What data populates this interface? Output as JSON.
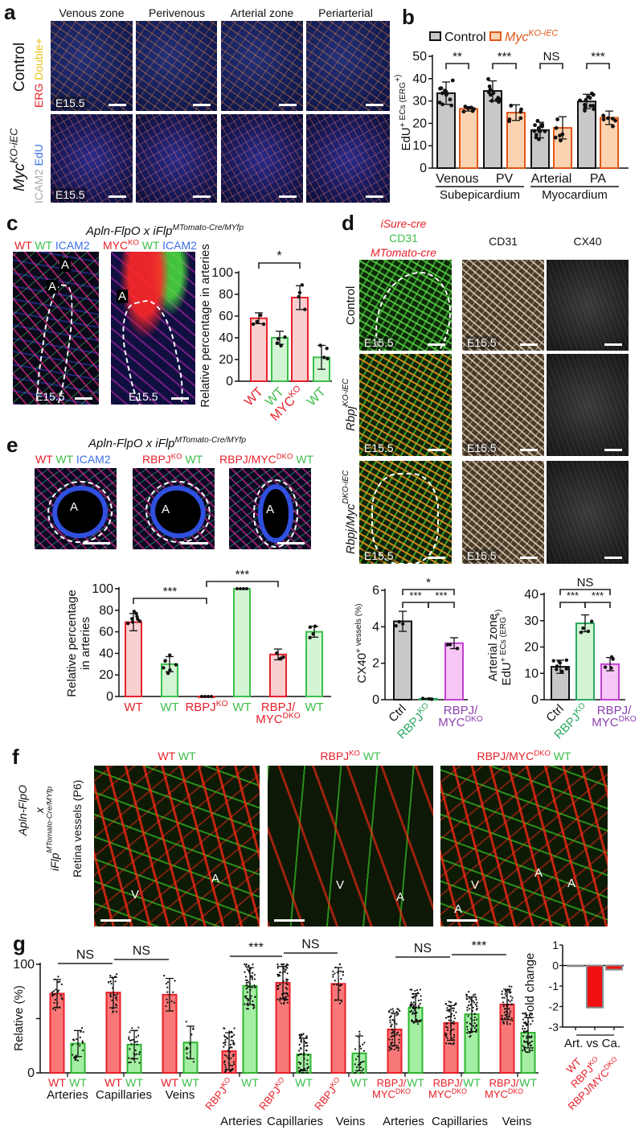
{
  "panel_labels": {
    "a": "a",
    "b": "b",
    "c": "c",
    "d": "d",
    "e": "e",
    "f": "f",
    "g": "g"
  },
  "panel_a": {
    "columns": [
      "Venous zone",
      "Perivenous",
      "Arterial zone",
      "Periarterial"
    ],
    "row1_label": "Control",
    "row1_stain_red": "ERG",
    "row1_stain_yellow": "Double+",
    "row2_label": "Myc",
    "row2_label_sup": "KO-iEC",
    "row2_stain_gray": "ICAM2",
    "row2_stain_blue": "EdU",
    "stage": "E15.5"
  },
  "panel_c": {
    "title": "Apln-FlpO  x  iFlp",
    "title_sup": "MTomato-Cre/MYfp",
    "legend1": {
      "wt_red": "WT",
      "wt_green": "WT",
      "icam2": "ICAM2"
    },
    "legend2": {
      "myc": "MYC",
      "myc_sup": "KO",
      "wt_green": "WT",
      "icam2": "ICAM2"
    },
    "artery": "A",
    "stage": "E15.5"
  },
  "panel_d": {
    "legend_red1": "iSure-cre",
    "legend_green": "CD31",
    "legend_red2": "MTomato-cre",
    "col_cd31": "CD31",
    "col_cx40": "CX40",
    "row1": "Control",
    "row2": "Rbpj",
    "row2_sup": "KO-iEC",
    "row3": "Rbpj/Myc",
    "row3_sup": "DKO-iEC",
    "stage": "E15.5"
  },
  "panel_e": {
    "title": "Apln-FlpO  x  iFlp",
    "title_sup": "MTomato-Cre/MYfp",
    "legend1": {
      "wt_red": "WT",
      "wt_green": "WT",
      "icam2": "ICAM2"
    },
    "legend2": {
      "rbpj": "RBPJ",
      "rbpj_sup": "KO",
      "wt_green": "WT"
    },
    "legend3": {
      "dko": "RBPJ/MYC",
      "dko_sup": "DKO",
      "wt_green": "WT"
    },
    "artery": "A"
  },
  "panel_f": {
    "side_line1": "Apln-FlpO",
    "side_line2": "x",
    "side_line3": "iFlp",
    "side_line3_sup": "MTomato-Cre/MYfp",
    "side_line4": "Retina vessels (P6)",
    "headers": [
      {
        "red": "WT",
        "sup": "",
        "green": "WT"
      },
      {
        "red": "RBPJ",
        "sup": "KO",
        "green": "WT"
      },
      {
        "red": "RBPJ/MYC",
        "sup": "DKO",
        "green": "WT"
      }
    ],
    "vein": "V",
    "artery": "A"
  },
  "colors": {
    "red": "#e8202a",
    "green": "#3cbf4a",
    "purple": "#8b3fb0",
    "orange": "#e0571a"
  },
  "chart_data": [
    {
      "id": "b",
      "type": "bar",
      "title": "",
      "ylabel": "EdU^+ ECs (ERG^+)",
      "ylim": [
        0,
        50
      ],
      "yticks": [
        0,
        10,
        20,
        30,
        40,
        50
      ],
      "legend": [
        {
          "name": "Control",
          "fill": "#c8c8c8",
          "stroke": "#111"
        },
        {
          "name": "Myc^KO-iEC",
          "fill": "#fcd3b0",
          "stroke": "#e0571a",
          "italic": true
        }
      ],
      "legend_position": "top-left",
      "categories": [
        "Venous",
        "PV",
        "Arterial",
        "PA"
      ],
      "groups": [
        "Subepicardium",
        "Myocardium"
      ],
      "series": [
        {
          "name": "Control",
          "values": [
            33.5,
            34.5,
            17,
            29.8
          ],
          "errors": [
            5,
            4.5,
            3.5,
            3.2
          ],
          "n": 12
        },
        {
          "name": "Myc^KO-iEC",
          "values": [
            26.5,
            24.8,
            18,
            22.5
          ],
          "errors": [
            1,
            3.5,
            5,
            3
          ],
          "n": 6
        }
      ],
      "significance": [
        {
          "from": 0,
          "to": 1,
          "label": "**"
        },
        {
          "from": 2,
          "to": 3,
          "label": "***"
        },
        {
          "from": 4,
          "to": 5,
          "label": "NS"
        },
        {
          "from": 6,
          "to": 7,
          "label": "***"
        }
      ]
    },
    {
      "id": "c",
      "type": "bar",
      "ylabel": "Relative percentage in arteries",
      "ylim": [
        0,
        100
      ],
      "yticks": [
        0,
        20,
        40,
        60,
        80,
        100
      ],
      "categories": [
        {
          "label": "WT",
          "color": "#e8202a"
        },
        {
          "label": "WT",
          "color": "#3cbf4a"
        },
        {
          "label": "MYC^KO",
          "color": "#e8202a"
        },
        {
          "label": "WT",
          "color": "#3cbf4a"
        }
      ],
      "values": [
        58,
        40,
        77,
        22
      ],
      "errors": [
        5,
        6,
        11,
        11
      ],
      "n": 4,
      "significance": [
        {
          "from": 0,
          "to": 2,
          "label": "*"
        }
      ]
    },
    {
      "id": "e",
      "type": "bar",
      "ylabel": "Relative percentage\nin arteries",
      "ylim": [
        0,
        100
      ],
      "yticks": [
        0,
        20,
        40,
        60,
        80,
        100
      ],
      "categories": [
        {
          "label": "WT",
          "color": "#e8202a"
        },
        {
          "label": "WT",
          "color": "#3cbf4a"
        },
        {
          "label": "RBPJ^KO",
          "color": "#e8202a"
        },
        {
          "label": "WT",
          "color": "#3cbf4a"
        },
        {
          "label": "RBPJ/\nMYC^DKO",
          "color": "#e8202a"
        },
        {
          "label": "WT",
          "color": "#3cbf4a"
        }
      ],
      "values": [
        69,
        30,
        0,
        100,
        39,
        60
      ],
      "errors": [
        8,
        7,
        0,
        0,
        5,
        5
      ],
      "n": [
        8,
        8,
        4,
        4,
        4,
        4
      ],
      "significance": [
        {
          "from": 0,
          "to": 2,
          "label": "***"
        },
        {
          "from": 2,
          "to": 4,
          "label": "***"
        }
      ]
    },
    {
      "id": "d1",
      "type": "bar",
      "ylabel": "CX40^+ vessels (%)",
      "ylim": [
        0,
        6
      ],
      "yticks": [
        0,
        2,
        4,
        6
      ],
      "categories": [
        {
          "label": "Ctrl",
          "color": "#111"
        },
        {
          "label": "RBPJ^KO",
          "color": "#2ca860"
        },
        {
          "label": "RBPJ/\nMYC^DKO",
          "color": "#8b3fb0"
        }
      ],
      "values": [
        4.3,
        0.05,
        3.1
      ],
      "errors": [
        0.55,
        0.02,
        0.3
      ],
      "n": 3,
      "significance": [
        {
          "from": 0,
          "to": 2,
          "label": "*",
          "level": 2
        },
        {
          "from": 0,
          "to": 1,
          "label": "***",
          "level": 1
        },
        {
          "from": 1,
          "to": 2,
          "label": "***",
          "level": 1
        }
      ]
    },
    {
      "id": "d2",
      "type": "bar",
      "ylabel": "Arterial zone\nEdU^+ ECs (ERG^+)",
      "ylim": [
        0,
        40
      ],
      "yticks": [
        0,
        10,
        20,
        30,
        40
      ],
      "categories": [
        {
          "label": "Ctrl",
          "color": "#111"
        },
        {
          "label": "RBPJ^KO",
          "color": "#2ca860"
        },
        {
          "label": "RBPJ/\nMYC^DKO",
          "color": "#8b3fb0"
        }
      ],
      "values": [
        12.5,
        29,
        13.5
      ],
      "errors": [
        2.5,
        3.2,
        2.5
      ],
      "n": [
        8,
        4,
        4
      ],
      "significance": [
        {
          "from": 0,
          "to": 2,
          "label": "NS",
          "level": 2
        },
        {
          "from": 0,
          "to": 1,
          "label": "***",
          "level": 1
        },
        {
          "from": 1,
          "to": 2,
          "label": "***",
          "level": 1
        }
      ]
    },
    {
      "id": "g",
      "type": "bar",
      "ylabel": "Relative (%)",
      "ylim": [
        0,
        100
      ],
      "yticks": [
        0,
        50,
        100
      ],
      "yticklabels": [
        "0",
        "",
        "100"
      ],
      "categories": [
        {
          "label": "WT",
          "color": "#e8202a"
        },
        {
          "label": "WT",
          "color": "#3cbf4a"
        },
        {
          "label": "WT",
          "color": "#e8202a"
        },
        {
          "label": "WT",
          "color": "#3cbf4a"
        },
        {
          "label": "WT",
          "color": "#e8202a"
        },
        {
          "label": "WT",
          "color": "#3cbf4a"
        },
        {
          "label": "RBPJ^KO",
          "color": "#e8202a",
          "rotated": true
        },
        {
          "label": "WT",
          "color": "#3cbf4a"
        },
        {
          "label": "RBPJ^KO",
          "color": "#e8202a",
          "rotated": true
        },
        {
          "label": "WT",
          "color": "#3cbf4a"
        },
        {
          "label": "RBPJ^KO",
          "color": "#e8202a",
          "rotated": true
        },
        {
          "label": "WT",
          "color": "#3cbf4a"
        },
        {
          "label": "RBPJ/\nMYC^DKO",
          "color": "#e8202a"
        },
        {
          "label": "WT",
          "color": "#3cbf4a"
        },
        {
          "label": "RBPJ/\nMYC^DKO",
          "color": "#e8202a"
        },
        {
          "label": "WT",
          "color": "#3cbf4a"
        },
        {
          "label": "RBPJ/\nMYC^DKO",
          "color": "#e8202a"
        },
        {
          "label": "WT",
          "color": "#3cbf4a"
        }
      ],
      "group_labels_row1": [
        "Arteries",
        "Capillaries",
        "Veins"
      ],
      "group_labels_row2": [
        "Arteries",
        "Capillaries",
        "Veins",
        "Arteries",
        "Capillaries",
        "Veins"
      ],
      "values": [
        73,
        27,
        74,
        26,
        72,
        28,
        20,
        80,
        83,
        17,
        82,
        18,
        40,
        60,
        46,
        54,
        63,
        37
      ],
      "errors": [
        13,
        12,
        14,
        13,
        15,
        15,
        17,
        17,
        15,
        15,
        15,
        16,
        15,
        13,
        16,
        16,
        14,
        14
      ],
      "n": [
        25,
        25,
        30,
        30,
        12,
        12,
        60,
        60,
        60,
        60,
        25,
        25,
        60,
        60,
        60,
        60,
        60,
        60
      ],
      "significance": [
        {
          "from": 0,
          "to": 2,
          "label": "NS"
        },
        {
          "from": 2,
          "to": 4,
          "label": "NS"
        },
        {
          "from": 6,
          "to": 8,
          "label": "***"
        },
        {
          "from": 8,
          "to": 10,
          "label": "NS"
        },
        {
          "from": 12,
          "to": 14,
          "label": "NS"
        },
        {
          "from": 14,
          "to": 16,
          "label": "***"
        }
      ]
    },
    {
      "id": "g_fold",
      "type": "bar",
      "ylabel": "Fold change",
      "ylim": [
        -3,
        1
      ],
      "yticks": [
        -3,
        -2,
        -1,
        0,
        1
      ],
      "xlabel": "Art. vs Ca.",
      "categories": [
        {
          "label": "WT",
          "color": "#e8202a"
        },
        {
          "label": "RBPJ^KO",
          "color": "#e8202a"
        },
        {
          "label": "RBPJ/MYC^DKO",
          "color": "#e8202a"
        }
      ],
      "values": [
        0,
        -2.05,
        -0.2
      ]
    }
  ]
}
